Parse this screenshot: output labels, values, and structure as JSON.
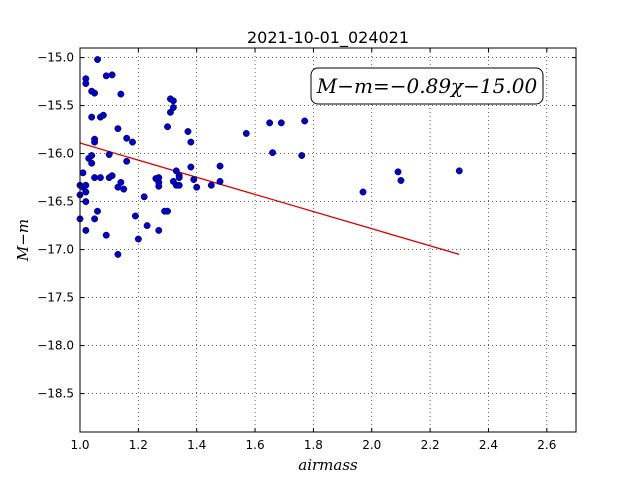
{
  "chart_data": {
    "type": "scatter",
    "title": "2021-10-01_024021",
    "xlabel": "airmass",
    "ylabel": "M−m",
    "xlim": [
      1.0,
      2.7
    ],
    "ylim": [
      -18.9,
      -14.9
    ],
    "y_inverted": false,
    "grid": true,
    "x_ticks": [
      1.0,
      1.2,
      1.4,
      1.6,
      1.8,
      2.0,
      2.2,
      2.4,
      2.6
    ],
    "x_tick_labels": [
      "1.0",
      "1.2",
      "1.4",
      "1.6",
      "1.8",
      "2.0",
      "2.2",
      "2.4",
      "2.6"
    ],
    "y_ticks": [
      -15.0,
      -15.5,
      -16.0,
      -16.5,
      -17.0,
      -17.5,
      -18.0,
      -18.5
    ],
    "y_tick_labels": [
      "−15.0",
      "−15.5",
      "−16.0",
      "−16.5",
      "−17.0",
      "−17.5",
      "−18.0",
      "−18.5"
    ],
    "annotation": "M−m=−0.89χ−15.00",
    "annotation_position": "top-right",
    "series": [
      {
        "type": "scatter",
        "color": "#0000cc",
        "points": [
          [
            1.0,
            -16.33
          ],
          [
            1.0,
            -16.43
          ],
          [
            1.0,
            -16.68
          ],
          [
            1.01,
            -16.2
          ],
          [
            1.01,
            -16.35
          ],
          [
            1.02,
            -15.22
          ],
          [
            1.02,
            -15.27
          ],
          [
            1.02,
            -16.33
          ],
          [
            1.02,
            -16.4
          ],
          [
            1.02,
            -16.8
          ],
          [
            1.02,
            -16.5
          ],
          [
            1.03,
            -16.05
          ],
          [
            1.04,
            -16.02
          ],
          [
            1.04,
            -16.1
          ],
          [
            1.04,
            -15.35
          ],
          [
            1.05,
            -15.37
          ],
          [
            1.04,
            -15.62
          ],
          [
            1.05,
            -15.85
          ],
          [
            1.05,
            -15.88
          ],
          [
            1.05,
            -16.25
          ],
          [
            1.05,
            -16.68
          ],
          [
            1.06,
            -15.02
          ],
          [
            1.06,
            -16.6
          ],
          [
            1.07,
            -15.62
          ],
          [
            1.07,
            -16.25
          ],
          [
            1.08,
            -15.6
          ],
          [
            1.09,
            -15.19
          ],
          [
            1.09,
            -16.85
          ],
          [
            1.1,
            -16.01
          ],
          [
            1.1,
            -16.25
          ],
          [
            1.11,
            -15.18
          ],
          [
            1.11,
            -16.23
          ],
          [
            1.13,
            -17.05
          ],
          [
            1.13,
            -15.74
          ],
          [
            1.13,
            -16.35
          ],
          [
            1.14,
            -15.38
          ],
          [
            1.14,
            -16.3
          ],
          [
            1.15,
            -16.37
          ],
          [
            1.16,
            -15.84
          ],
          [
            1.16,
            -16.08
          ],
          [
            1.18,
            -15.88
          ],
          [
            1.19,
            -16.65
          ],
          [
            1.2,
            -16.89
          ],
          [
            1.22,
            -16.45
          ],
          [
            1.23,
            -16.75
          ],
          [
            1.26,
            -16.26
          ],
          [
            1.27,
            -16.25
          ],
          [
            1.27,
            -16.3
          ],
          [
            1.27,
            -16.34
          ],
          [
            1.27,
            -16.8
          ],
          [
            1.29,
            -16.6
          ],
          [
            1.3,
            -16.6
          ],
          [
            1.3,
            -15.72
          ],
          [
            1.31,
            -15.57
          ],
          [
            1.31,
            -15.43
          ],
          [
            1.32,
            -15.45
          ],
          [
            1.32,
            -15.52
          ],
          [
            1.32,
            -16.29
          ],
          [
            1.33,
            -16.33
          ],
          [
            1.33,
            -16.18
          ],
          [
            1.34,
            -16.23
          ],
          [
            1.34,
            -16.25
          ],
          [
            1.34,
            -16.33
          ],
          [
            1.37,
            -15.77
          ],
          [
            1.38,
            -15.88
          ],
          [
            1.38,
            -16.14
          ],
          [
            1.39,
            -16.27
          ],
          [
            1.4,
            -16.35
          ],
          [
            1.45,
            -16.33
          ],
          [
            1.48,
            -16.13
          ],
          [
            1.48,
            -16.29
          ],
          [
            1.57,
            -15.79
          ],
          [
            1.65,
            -15.68
          ],
          [
            1.66,
            -15.99
          ],
          [
            1.69,
            -15.68
          ],
          [
            1.76,
            -16.02
          ],
          [
            1.77,
            -15.66
          ],
          [
            1.97,
            -16.4
          ],
          [
            2.09,
            -16.19
          ],
          [
            2.1,
            -16.28
          ],
          [
            2.3,
            -16.18
          ]
        ]
      },
      {
        "type": "line",
        "color": "#dd0000",
        "points": [
          [
            1.0,
            -15.89
          ],
          [
            2.3,
            -17.05
          ]
        ]
      }
    ]
  }
}
